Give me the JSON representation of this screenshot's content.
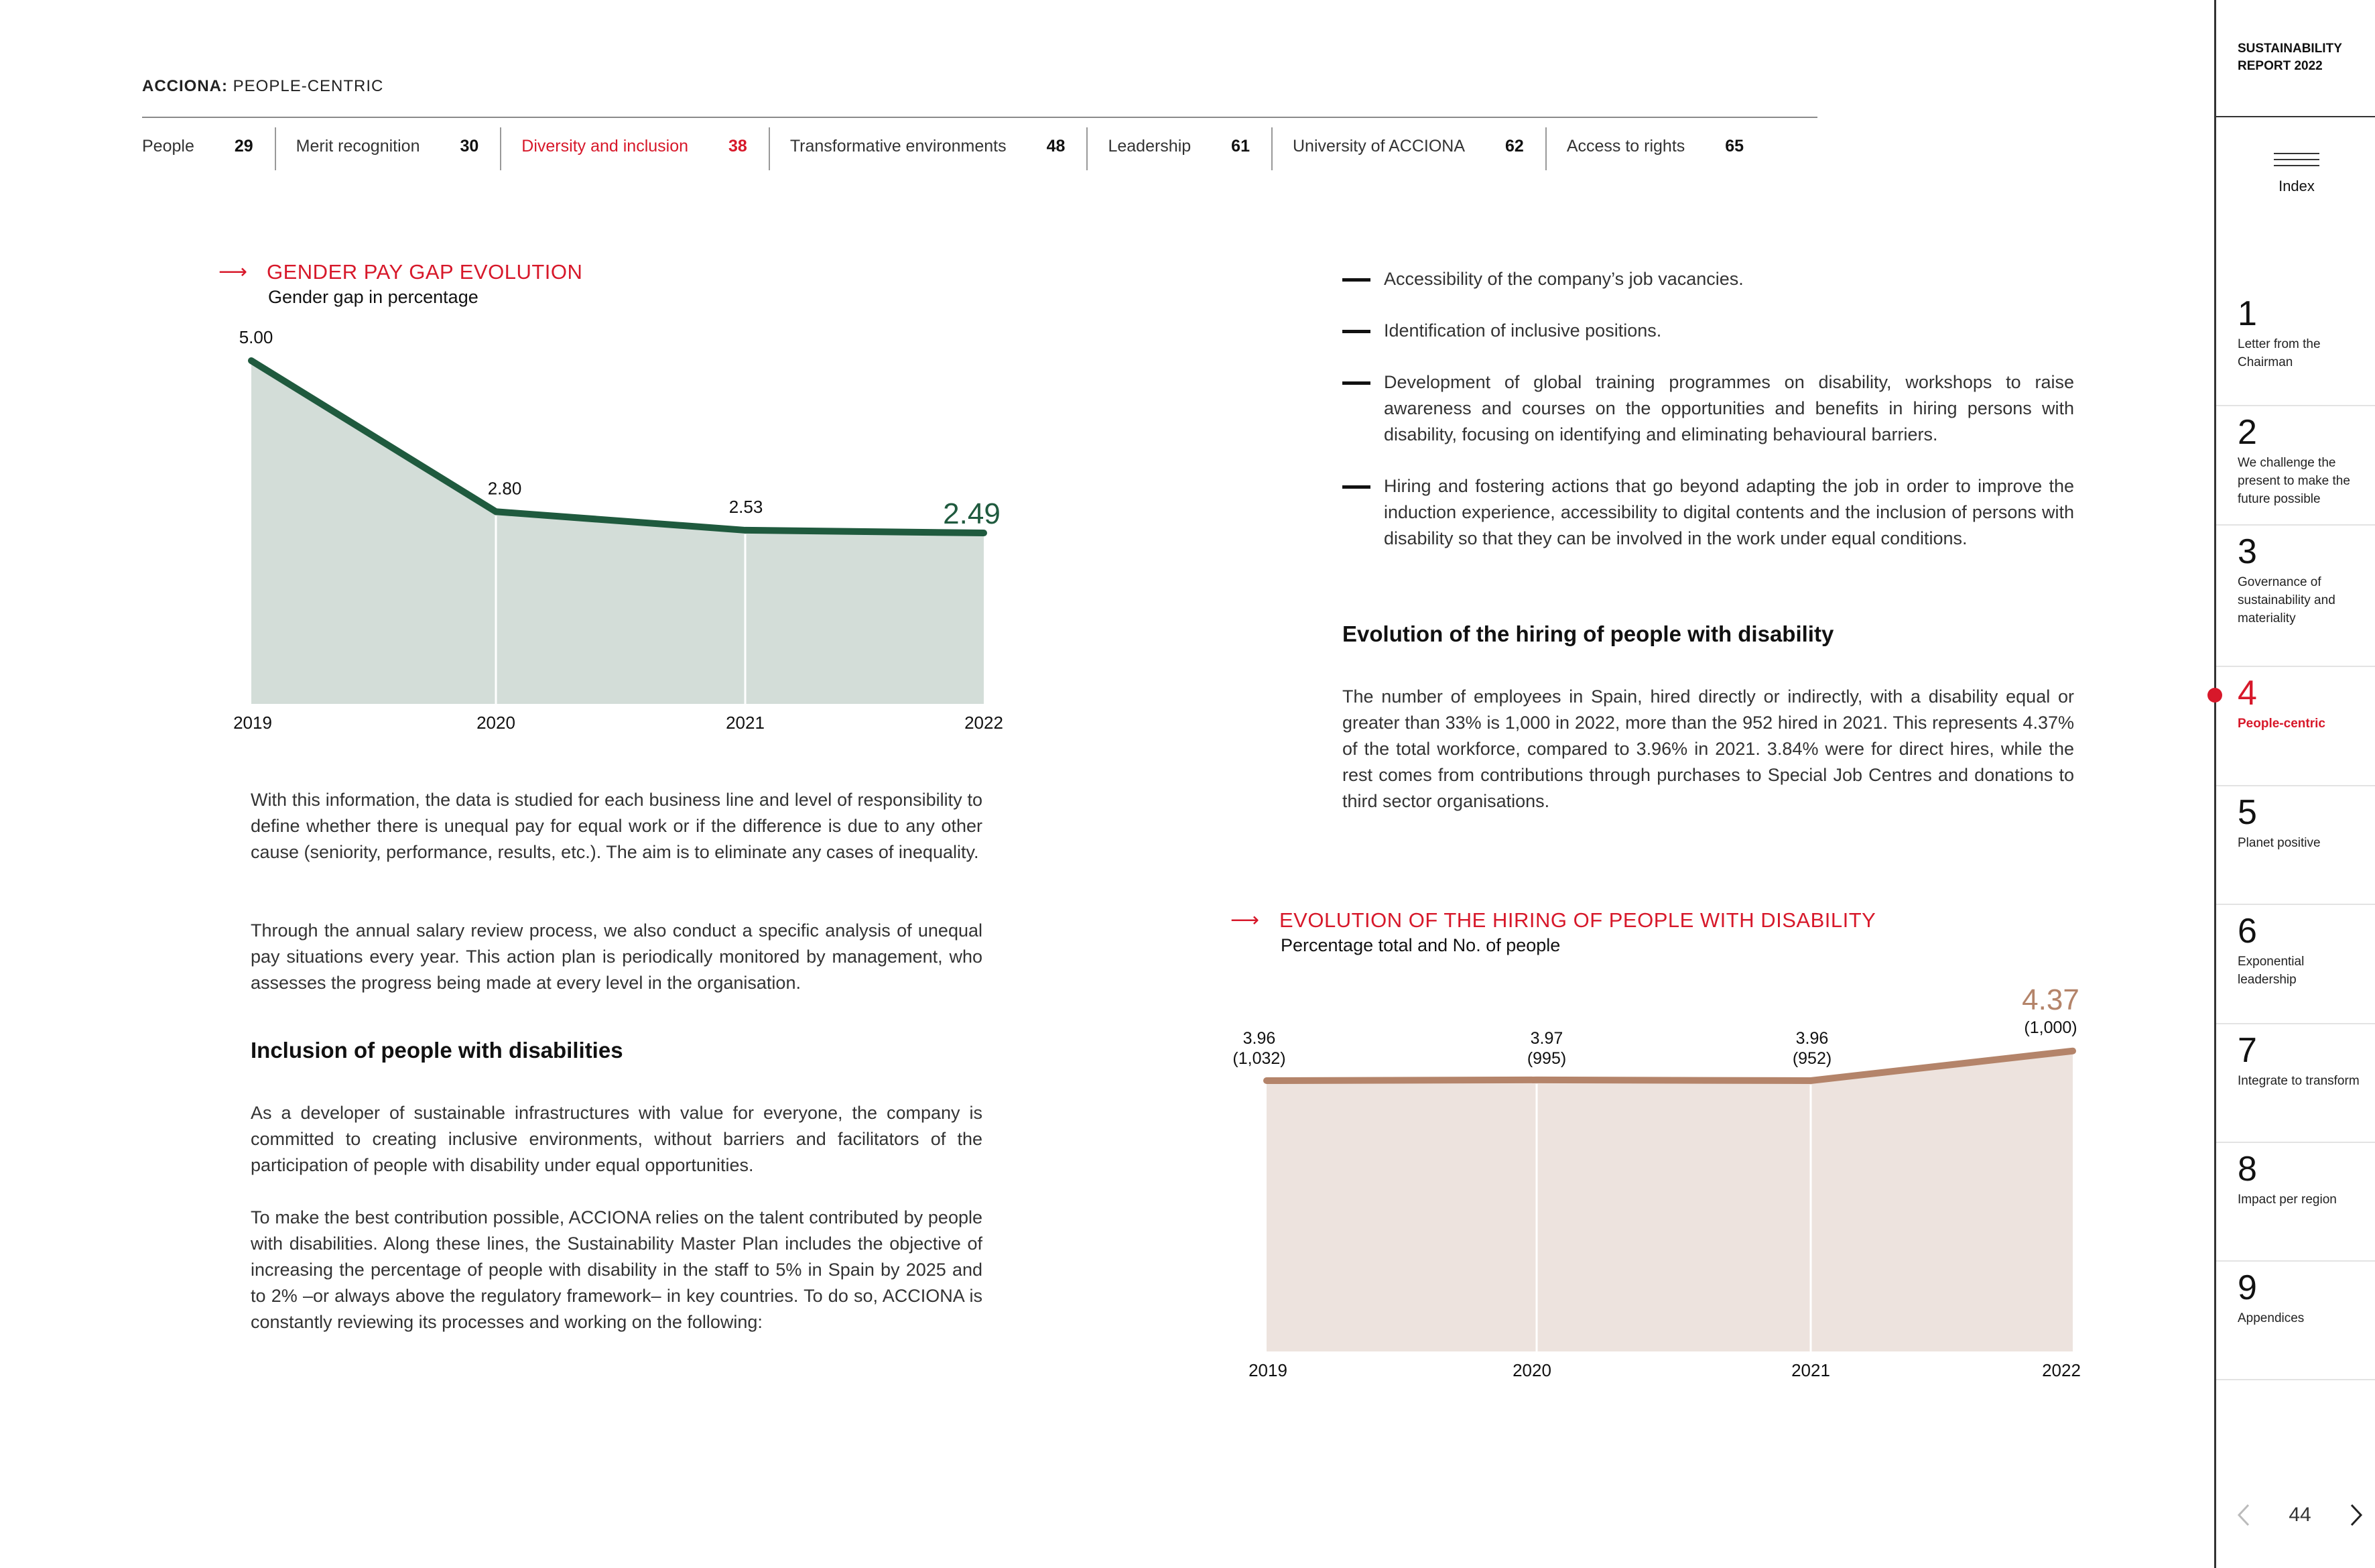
{
  "header": {
    "brand_bold": "ACCIONA:",
    "brand_rest": " PEOPLE-CENTRIC",
    "tabs": [
      {
        "label": "People",
        "page": "29"
      },
      {
        "label": "Merit recognition",
        "page": "30"
      },
      {
        "label": "Diversity and inclusion",
        "page": "38"
      },
      {
        "label": "Transformative environments",
        "page": "48"
      },
      {
        "label": "Leadership",
        "page": "61"
      },
      {
        "label": "University of ACCIONA",
        "page": "62"
      },
      {
        "label": "Access to rights",
        "page": "65"
      }
    ]
  },
  "chart1": {
    "title": "GENDER PAY GAP EVOLUTION",
    "subtitle": "Gender gap in percentage"
  },
  "chart2": {
    "title": "EVOLUTION OF THE HIRING OF PEOPLE WITH DISABILITY",
    "subtitle": "Percentage total and No. of people"
  },
  "chart_data": [
    {
      "type": "area",
      "title": "GENDER PAY GAP EVOLUTION",
      "subtitle": "Gender gap in percentage",
      "x": [
        "2019",
        "2020",
        "2021",
        "2022"
      ],
      "series": [
        {
          "values": [
            5.0,
            2.8,
            2.53,
            2.49
          ]
        }
      ],
      "value_labels": [
        "5.00",
        "2.80",
        "2.53",
        "2.49"
      ],
      "colors": {
        "line": "#1f5a3e",
        "fill": "#d3ddd8"
      },
      "grid": false
    },
    {
      "type": "area",
      "title": "EVOLUTION OF THE HIRING OF PEOPLE WITH DISABILITY",
      "subtitle": "Percentage total and No. of people",
      "x": [
        "2019",
        "2020",
        "2021",
        "2022"
      ],
      "series": [
        {
          "values": [
            3.96,
            3.97,
            3.96,
            4.37
          ]
        }
      ],
      "people": [
        1032,
        995,
        952,
        1000
      ],
      "value_labels": [
        "3.96",
        "3.97",
        "3.96",
        "4.37"
      ],
      "people_labels": [
        "(1,032)",
        "(995)",
        "(952)",
        "(1,000)"
      ],
      "colors": {
        "line": "#b4846a",
        "fill": "#ede3de",
        "highlight": "#b4846a"
      },
      "grid": false
    }
  ],
  "left_text": {
    "p1": "With this information, the data is studied for each business line and level of responsibility to define whether there is unequal pay for equal work or if the difference is due to any other cause (seniority, performance, results, etc.). The aim is to eliminate any cases of inequality.",
    "p2": "Through the annual salary review process, we also conduct a specific analysis of unequal pay situations every year. This action plan is periodically monitored by management, who assesses the progress being made at every level in the organisation.",
    "heading": "Inclusion of people with disabilities",
    "p3": "As a developer of sustainable infrastructures with value for everyone, the company is committed to creating inclusive environments, without barriers and facilitators of the participation of people with disability under equal opportunities.",
    "p4": "To make the best contribution possible, ACCIONA relies on the talent contributed by people with disabilities. Along these lines, the Sustainability Master Plan includes the objective of increasing the percentage of people with disability in the staff to 5% in Spain by 2025 and to 2% –or always above the regulatory framework– in key countries. To do so, ACCIONA is constantly reviewing its processes and working on the following:"
  },
  "right_text": {
    "bullets": [
      "Accessibility of the company’s job vacancies.",
      "Identification of inclusive positions.",
      "Development of global training programmes on disability, workshops to raise awareness and courses on the opportunities and benefits in hiring persons with disability, focusing on identifying and eliminating behavioural barriers.",
      "Hiring and fostering actions that go beyond adapting the job in order to improve the induction experience, accessibility to digital contents and the inclusion of persons with disability so that they can be involved in the work under equal conditions."
    ],
    "heading": "Evolution of the hiring of people with disability",
    "p1": "The number of employees in Spain, hired directly or indirectly, with a disability equal or greater than 33% is 1,000 in 2022, more than the 952 hired in 2021. This represents 4.37% of the total workforce, compared to 3.96% in 2021. 3.84% were for direct hires, while the rest comes from contributions through purchases to Special Job Centres and donations to third sector organisations."
  },
  "sidebar": {
    "report": "SUSTAINABILITY REPORT 2022",
    "index_label": "Index",
    "chapters": [
      {
        "num": "1",
        "title": "Letter from the Chairman"
      },
      {
        "num": "2",
        "title": "We challenge the present to make the future possible"
      },
      {
        "num": "3",
        "title": "Governance of sustainability and materiality"
      },
      {
        "num": "4",
        "title": "People-centric"
      },
      {
        "num": "5",
        "title": "Planet positive"
      },
      {
        "num": "6",
        "title": "Exponential leadership"
      },
      {
        "num": "7",
        "title": "Integrate to transform"
      },
      {
        "num": "8",
        "title": "Impact per region"
      },
      {
        "num": "9",
        "title": "Appendices"
      }
    ],
    "active_chapter": "4",
    "page_number": "44",
    "prev_icon": "chevron-left-icon",
    "next_icon": "chevron-right-icon"
  }
}
